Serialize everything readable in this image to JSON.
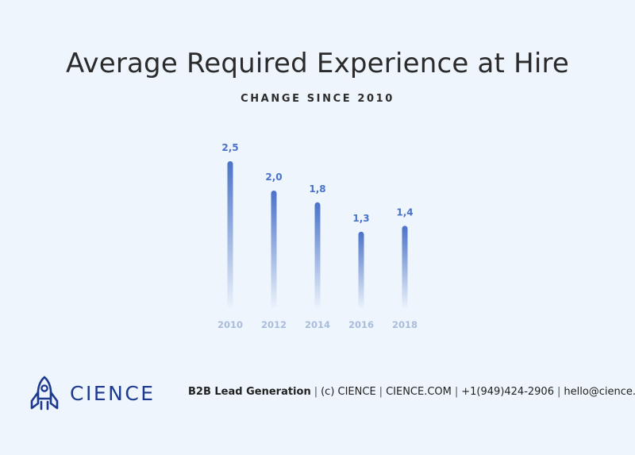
{
  "chart_data": {
    "type": "bar",
    "title": "Average Required Experience at Hire",
    "subtitle": "CHANGE SINCE 2010",
    "categories": [
      "2010",
      "2012",
      "2014",
      "2016",
      "2018"
    ],
    "values": [
      2.5,
      2.0,
      1.8,
      1.3,
      1.4
    ],
    "value_labels": [
      "2,5",
      "2,0",
      "1,8",
      "1,3",
      "1,4"
    ],
    "bar_color": "#4a72c8",
    "label_color": "#4a72c8",
    "tick_color": "#a9bcdc"
  },
  "footer": {
    "brand": "CIENCE",
    "tagline": "B2B Lead Generation",
    "copyright": "(c) CIENCE",
    "website": "CIENCE.COM",
    "phone": "+1(949)424-2906",
    "email": "hello@cience.com",
    "logo_icon": "rocket-icon",
    "brand_color": "#1e3a8f"
  }
}
